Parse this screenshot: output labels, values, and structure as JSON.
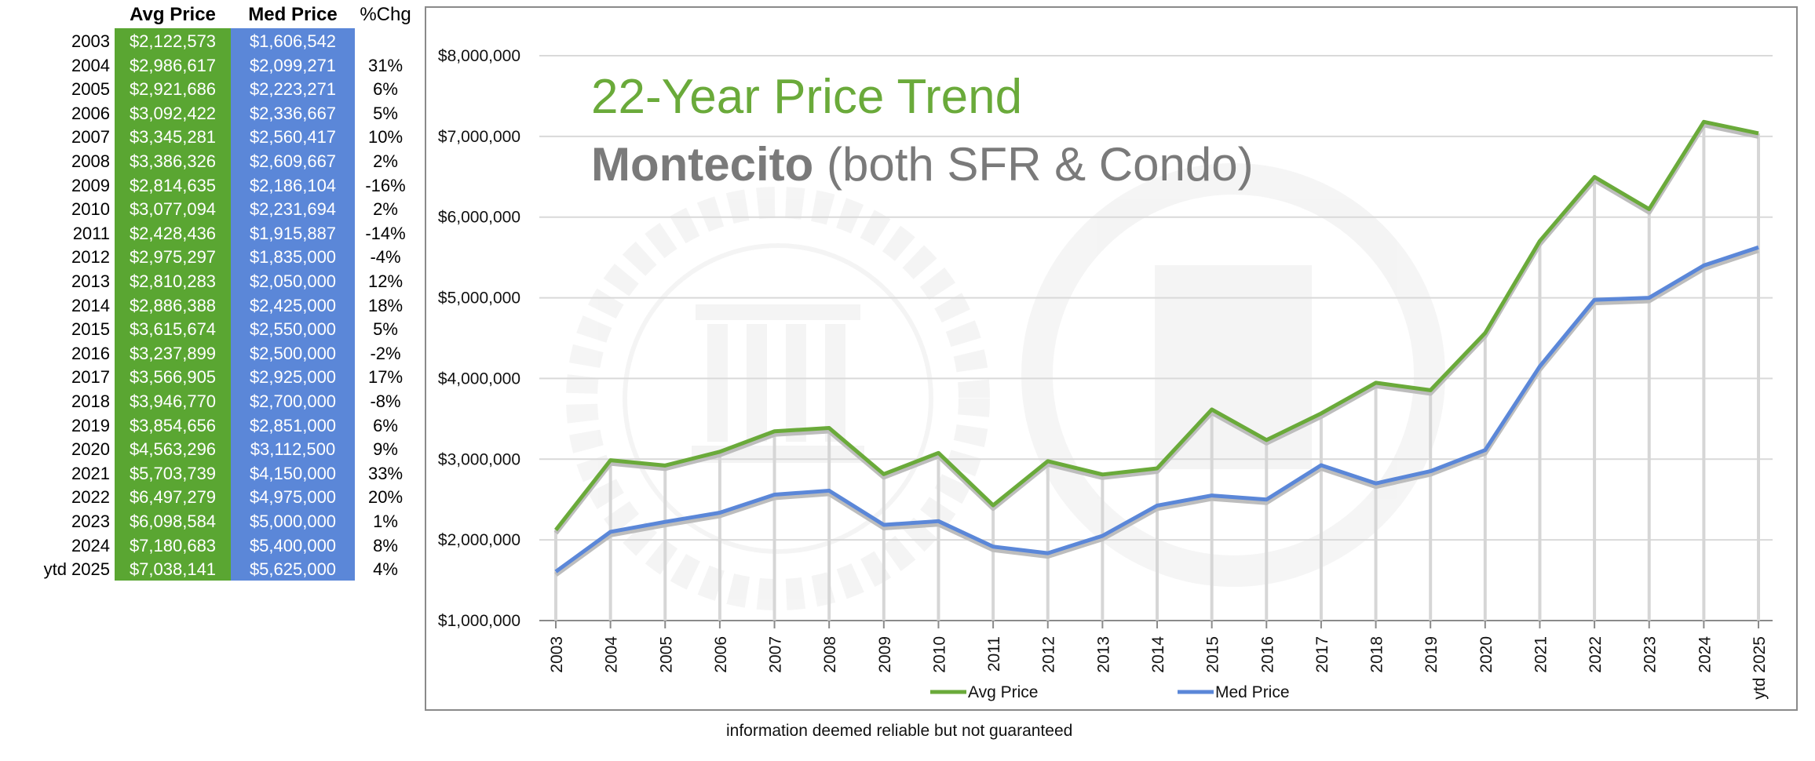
{
  "table": {
    "headers": {
      "avg": "Avg Price",
      "med": "Med Price",
      "chg": "%Chg"
    },
    "rows": [
      {
        "year": "2003",
        "avg": "$2,122,573",
        "med": "$1,606,542",
        "chg": ""
      },
      {
        "year": "2004",
        "avg": "$2,986,617",
        "med": "$2,099,271",
        "chg": "31%"
      },
      {
        "year": "2005",
        "avg": "$2,921,686",
        "med": "$2,223,271",
        "chg": "6%"
      },
      {
        "year": "2006",
        "avg": "$3,092,422",
        "med": "$2,336,667",
        "chg": "5%"
      },
      {
        "year": "2007",
        "avg": "$3,345,281",
        "med": "$2,560,417",
        "chg": "10%"
      },
      {
        "year": "2008",
        "avg": "$3,386,326",
        "med": "$2,609,667",
        "chg": "2%"
      },
      {
        "year": "2009",
        "avg": "$2,814,635",
        "med": "$2,186,104",
        "chg": "-16%"
      },
      {
        "year": "2010",
        "avg": "$3,077,094",
        "med": "$2,231,694",
        "chg": "2%"
      },
      {
        "year": "2011",
        "avg": "$2,428,436",
        "med": "$1,915,887",
        "chg": "-14%"
      },
      {
        "year": "2012",
        "avg": "$2,975,297",
        "med": "$1,835,000",
        "chg": "-4%"
      },
      {
        "year": "2013",
        "avg": "$2,810,283",
        "med": "$2,050,000",
        "chg": "12%"
      },
      {
        "year": "2014",
        "avg": "$2,886,388",
        "med": "$2,425,000",
        "chg": "18%"
      },
      {
        "year": "2015",
        "avg": "$3,615,674",
        "med": "$2,550,000",
        "chg": "5%"
      },
      {
        "year": "2016",
        "avg": "$3,237,899",
        "med": "$2,500,000",
        "chg": "-2%"
      },
      {
        "year": "2017",
        "avg": "$3,566,905",
        "med": "$2,925,000",
        "chg": "17%"
      },
      {
        "year": "2018",
        "avg": "$3,946,770",
        "med": "$2,700,000",
        "chg": "-8%"
      },
      {
        "year": "2019",
        "avg": "$3,854,656",
        "med": "$2,851,000",
        "chg": "6%"
      },
      {
        "year": "2020",
        "avg": "$4,563,296",
        "med": "$3,112,500",
        "chg": "9%"
      },
      {
        "year": "2021",
        "avg": "$5,703,739",
        "med": "$4,150,000",
        "chg": "33%"
      },
      {
        "year": "2022",
        "avg": "$6,497,279",
        "med": "$4,975,000",
        "chg": "20%"
      },
      {
        "year": "2023",
        "avg": "$6,098,584",
        "med": "$5,000,000",
        "chg": "1%"
      },
      {
        "year": "2024",
        "avg": "$7,180,683",
        "med": "$5,400,000",
        "chg": "8%"
      },
      {
        "year": "ytd 2025",
        "avg": "$7,038,141",
        "med": "$5,625,000",
        "chg": "4%"
      }
    ]
  },
  "chart_data": {
    "type": "line",
    "title_line1": "22-Year Price Trend",
    "title_bold": "Montecito",
    "title_rest": " (both SFR & Condo)",
    "categories": [
      "2003",
      "2004",
      "2005",
      "2006",
      "2007",
      "2008",
      "2009",
      "2010",
      "2011",
      "2012",
      "2013",
      "2014",
      "2015",
      "2016",
      "2017",
      "2018",
      "2019",
      "2020",
      "2021",
      "2022",
      "2023",
      "2024",
      "ytd 2025"
    ],
    "series": [
      {
        "name": "Avg Price",
        "color": "#6aaa3a",
        "values": [
          2122573,
          2986617,
          2921686,
          3092422,
          3345281,
          3386326,
          2814635,
          3077094,
          2428436,
          2975297,
          2810283,
          2886388,
          3615674,
          3237899,
          3566905,
          3946770,
          3854656,
          4563296,
          5703739,
          6497279,
          6098584,
          7180683,
          7038141
        ]
      },
      {
        "name": "Med Price",
        "color": "#5b87d8",
        "values": [
          1606542,
          2099271,
          2223271,
          2336667,
          2560417,
          2609667,
          2186104,
          2231694,
          1915887,
          1835000,
          2050000,
          2425000,
          2550000,
          2500000,
          2925000,
          2700000,
          2851000,
          3112500,
          4150000,
          4975000,
          5000000,
          5400000,
          5625000
        ]
      }
    ],
    "ylim": [
      1000000,
      8000000
    ],
    "yticks": [
      1000000,
      2000000,
      3000000,
      4000000,
      5000000,
      6000000,
      7000000,
      8000000
    ],
    "ytick_labels": [
      "$1,000,000",
      "$2,000,000",
      "$3,000,000",
      "$4,000,000",
      "$5,000,000",
      "$6,000,000",
      "$7,000,000",
      "$8,000,000"
    ],
    "grid": "horizontal",
    "legend_position": "bottom"
  },
  "footer": "information deemed reliable but not guaranteed"
}
